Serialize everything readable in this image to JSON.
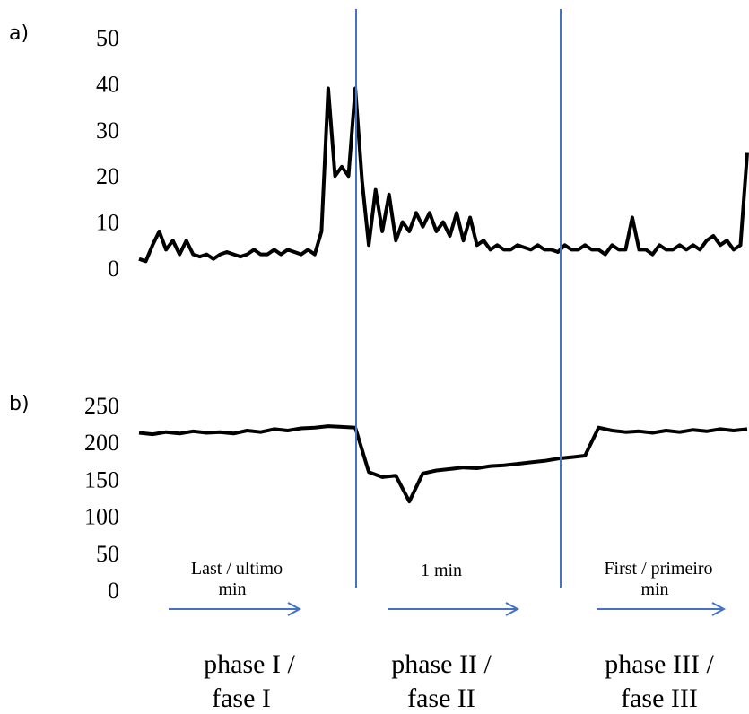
{
  "chart_data": [
    {
      "panel": "a)",
      "type": "line",
      "yticks": [
        0,
        10,
        20,
        30,
        40,
        50
      ],
      "ylim": [
        0,
        50
      ],
      "series": [
        {
          "color": "#000000",
          "x": [
            0,
            3,
            6,
            9,
            12,
            15,
            18,
            21,
            24,
            27,
            30,
            33,
            36,
            39,
            42,
            45,
            48,
            51,
            54,
            57,
            60,
            63,
            66,
            69,
            72,
            75,
            78,
            81,
            84,
            87,
            90,
            93,
            96,
            99,
            102,
            105,
            108,
            111,
            114,
            117,
            120,
            123,
            126,
            129,
            132,
            135,
            138,
            141,
            144,
            147,
            150,
            153,
            156,
            159,
            162,
            165,
            168,
            171,
            174,
            177,
            180
          ],
          "values": [
            2,
            1.5,
            5,
            8,
            4,
            6,
            3,
            6,
            3,
            2.5,
            3,
            2,
            3,
            3.5,
            3,
            2.5,
            3,
            4,
            3,
            3,
            4,
            3,
            4,
            3.5,
            3,
            4,
            3,
            8,
            39,
            20,
            22,
            20,
            39,
            19,
            5,
            17,
            8,
            16,
            6,
            10,
            8,
            12,
            9,
            12,
            8,
            10,
            7,
            12,
            6,
            11,
            5,
            6,
            4,
            5,
            4,
            4,
            5,
            4.5,
            4,
            5,
            4
          ]
        },
        {
          "color": "#000000",
          "x": [
            180,
            183,
            186,
            189,
            192,
            195,
            198,
            201,
            204,
            207,
            210,
            213,
            216,
            219,
            222,
            225,
            228,
            231,
            234,
            237,
            240,
            243,
            246,
            249,
            252,
            255,
            258,
            261,
            264,
            267,
            270
          ],
          "values": [
            4,
            4,
            3.5,
            5,
            4,
            4,
            5,
            4,
            4,
            3,
            5,
            4,
            4,
            11,
            4,
            4,
            3,
            5,
            4,
            4,
            5,
            4,
            5,
            4,
            6,
            7,
            5,
            6,
            4,
            5,
            25
          ]
        }
      ]
    },
    {
      "panel": "b)",
      "type": "line",
      "yticks": [
        0,
        50,
        100,
        150,
        200,
        250
      ],
      "ylim": [
        0,
        250
      ],
      "series": [
        {
          "color": "#000000",
          "x": [
            0,
            6,
            12,
            18,
            24,
            30,
            36,
            42,
            48,
            54,
            60,
            66,
            72,
            78,
            84,
            90,
            96,
            102,
            108,
            114,
            120,
            126,
            132,
            138,
            144,
            150,
            156,
            162,
            168,
            174,
            180,
            186,
            192,
            198,
            204,
            210,
            216,
            222,
            228,
            234,
            240,
            246,
            252,
            258,
            264,
            270
          ],
          "values": [
            213,
            211,
            214,
            212,
            215,
            213,
            214,
            212,
            216,
            214,
            218,
            216,
            219,
            220,
            222,
            221,
            220,
            160,
            153,
            155,
            120,
            158,
            162,
            164,
            166,
            165,
            168,
            169,
            171,
            173,
            175,
            178,
            180,
            182,
            220,
            216,
            214,
            215,
            213,
            216,
            214,
            217,
            215,
            218,
            216,
            218
          ]
        }
      ]
    }
  ],
  "panel_labels": {
    "a": "a)",
    "b": "b)"
  },
  "arrows": [
    {
      "line1": "Last / ultimo",
      "line2": "min"
    },
    {
      "line1": "1 min",
      "line2": ""
    },
    {
      "line1": "First / primeiro",
      "line2": "min"
    }
  ],
  "phases": [
    {
      "line1": "phase I /",
      "line2": "fase I"
    },
    {
      "line1": "phase II /",
      "line2": "fase II"
    },
    {
      "line1": "phase III /",
      "line2": "fase III"
    }
  ]
}
